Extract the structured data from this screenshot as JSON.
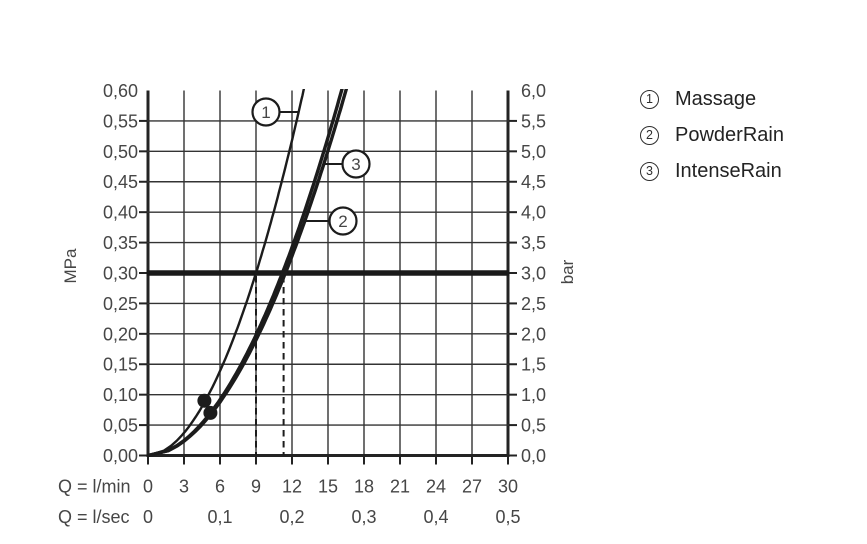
{
  "page": {
    "background": "#ffffff"
  },
  "legend": {
    "items": [
      {
        "number": "1",
        "label": "Massage"
      },
      {
        "number": "2",
        "label": "PowderRain"
      },
      {
        "number": "3",
        "label": "IntenseRain"
      }
    ]
  },
  "chart_data": {
    "type": "line",
    "title": "",
    "grid": true,
    "x_axis": {
      "primary_label": "Q = l/min",
      "secondary_label": "Q = l/sec",
      "primary_ticks": [
        "0",
        "3",
        "6",
        "9",
        "12",
        "15",
        "18",
        "21",
        "24",
        "27",
        "30"
      ],
      "secondary_ticks": [
        {
          "label": "0",
          "at_lmin": 0
        },
        {
          "label": "0,1",
          "at_lmin": 6
        },
        {
          "label": "0,2",
          "at_lmin": 12
        },
        {
          "label": "0,3",
          "at_lmin": 18
        },
        {
          "label": "0,4",
          "at_lmin": 24
        },
        {
          "label": "0,5",
          "at_lmin": 30
        }
      ],
      "range_lmin": [
        0,
        30
      ],
      "gridline_step_lmin": 3
    },
    "y_axis_left": {
      "label": "MPa",
      "ticks": [
        "0,60",
        "0,55",
        "0,50",
        "0,45",
        "0,40",
        "0,35",
        "0,30",
        "0,25",
        "0,20",
        "0,15",
        "0,10",
        "0,05",
        "0,00"
      ],
      "range_mpa": [
        0,
        0.6
      ],
      "gridline_step_mpa": 0.05
    },
    "y_axis_right": {
      "label": "bar",
      "ticks": [
        "6,0",
        "5,5",
        "5,0",
        "4,5",
        "4,0",
        "3,5",
        "3,0",
        "2,5",
        "2,0",
        "1,5",
        "1,0",
        "0,5",
        "0,0"
      ]
    },
    "series": [
      {
        "number": "1",
        "name": "Massage",
        "q_lmin_at_3bar": 9.0,
        "q_lmin_at_6bar": 13.0,
        "thickness": "thin"
      },
      {
        "number": "2",
        "name": "PowderRain",
        "q_lmin_at_3bar": 11.2,
        "q_lmin_at_6bar": 16.0,
        "thickness": "thick"
      },
      {
        "number": "3",
        "name": "IntenseRain",
        "q_lmin_at_3bar": 11.45,
        "q_lmin_at_6bar": 16.3,
        "thickness": "thick"
      }
    ],
    "curve_exponent": 1.9,
    "reference_line": {
      "mpa": 0.3,
      "bar": 3.0
    },
    "dashed_guides_lmin": [
      9,
      11.3
    ],
    "marked_points": [
      {
        "q_lmin": 4.7,
        "mpa": 0.09
      },
      {
        "q_lmin": 5.2,
        "mpa": 0.07
      }
    ]
  },
  "colors": {
    "background": "#ffffff",
    "grid_line": "#333333",
    "axis_line": "#232323",
    "curve": "#1c1c1c",
    "reference_line": "#1a1a1a",
    "tick_text": "#464646",
    "legend_text": "#232323"
  }
}
